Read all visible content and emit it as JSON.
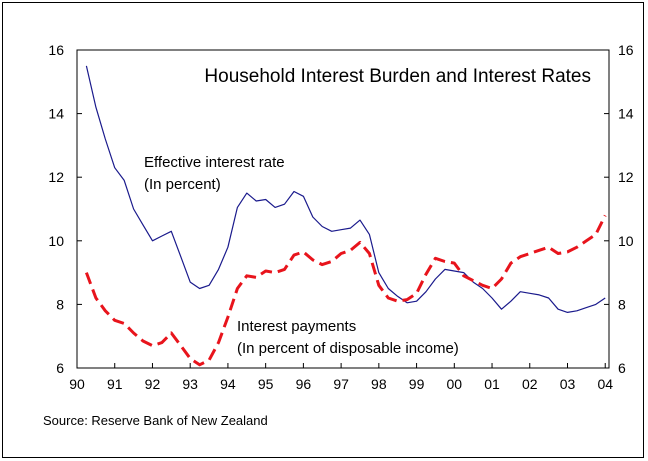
{
  "chart_data": {
    "type": "line",
    "title": "Household Interest Burden and Interest Rates",
    "source": "Source: Reserve Bank of New Zealand",
    "xlabel": "",
    "ylabel": "",
    "xlim": [
      1990,
      2004.1
    ],
    "ylim": [
      6,
      16
    ],
    "x_tick_values": [
      1990,
      1991,
      1992,
      1993,
      1994,
      1995,
      1996,
      1997,
      1998,
      1999,
      2000,
      2001,
      2002,
      2003,
      2004
    ],
    "x_tick_labels": [
      "90",
      "91",
      "92",
      "93",
      "94",
      "95",
      "96",
      "97",
      "98",
      "99",
      "00",
      "01",
      "02",
      "03",
      "04"
    ],
    "y_ticks": [
      6,
      8,
      10,
      12,
      14,
      16
    ],
    "y_tick_labels": [
      "6",
      "8",
      "10",
      "12",
      "14",
      "16"
    ],
    "y_ticks_right": [
      6,
      8,
      10,
      12,
      14,
      16
    ],
    "y_tick_labels_right": [
      "6",
      "8",
      "10",
      "12",
      "14",
      "16"
    ],
    "grid": false,
    "legend": "none",
    "annotations": [
      {
        "series": "Effective interest rate",
        "lines": [
          "Effective interest rate",
          "(In percent)"
        ]
      },
      {
        "series": "Interest payments",
        "lines": [
          "Interest payments",
          "(In percent of disposable income)"
        ]
      }
    ],
    "series": [
      {
        "name": "Effective interest rate",
        "color": "#1a1a8c",
        "style": "solid",
        "x": [
          1990.25,
          1990.5,
          1990.75,
          1991.0,
          1991.25,
          1991.5,
          1991.75,
          1992.0,
          1992.25,
          1992.5,
          1992.75,
          1993.0,
          1993.25,
          1993.5,
          1993.75,
          1994.0,
          1994.25,
          1994.5,
          1994.75,
          1995.0,
          1995.25,
          1995.5,
          1995.75,
          1996.0,
          1996.25,
          1996.5,
          1996.75,
          1997.0,
          1997.25,
          1997.5,
          1997.75,
          1998.0,
          1998.25,
          1998.5,
          1998.75,
          1999.0,
          1999.25,
          1999.5,
          1999.75,
          2000.0,
          2000.25,
          2000.5,
          2000.75,
          2001.0,
          2001.25,
          2001.5,
          2001.75,
          2002.0,
          2002.25,
          2002.5,
          2002.75,
          2003.0,
          2003.25,
          2003.5,
          2003.75,
          2004.0
        ],
        "values": [
          15.5,
          14.2,
          13.2,
          12.3,
          11.9,
          11.0,
          10.5,
          10.0,
          10.15,
          10.3,
          9.5,
          8.7,
          8.5,
          8.6,
          9.1,
          9.8,
          11.05,
          11.5,
          11.25,
          11.3,
          11.05,
          11.15,
          11.55,
          11.4,
          10.75,
          10.45,
          10.3,
          10.35,
          10.4,
          10.65,
          10.2,
          9.0,
          8.5,
          8.25,
          8.05,
          8.1,
          8.4,
          8.8,
          9.1,
          9.05,
          9.0,
          8.7,
          8.5,
          8.2,
          7.85,
          8.1,
          8.4,
          8.35,
          8.3,
          8.2,
          7.85,
          7.75,
          7.8,
          7.9,
          8.0,
          8.2
        ]
      },
      {
        "name": "Interest payments",
        "color": "#e8141c",
        "style": "dashed",
        "x": [
          1990.25,
          1990.5,
          1990.75,
          1991.0,
          1991.25,
          1991.5,
          1991.75,
          1992.0,
          1992.25,
          1992.5,
          1992.75,
          1993.0,
          1993.25,
          1993.5,
          1993.75,
          1994.0,
          1994.25,
          1994.5,
          1994.75,
          1995.0,
          1995.25,
          1995.5,
          1995.75,
          1996.0,
          1996.25,
          1996.5,
          1996.75,
          1997.0,
          1997.25,
          1997.5,
          1997.75,
          1998.0,
          1998.25,
          1998.5,
          1998.75,
          1999.0,
          1999.25,
          1999.5,
          1999.75,
          2000.0,
          2000.25,
          2000.5,
          2000.75,
          2001.0,
          2001.25,
          2001.5,
          2001.75,
          2002.0,
          2002.25,
          2002.5,
          2002.75,
          2003.0,
          2003.25,
          2003.5,
          2003.75,
          2004.0
        ],
        "values": [
          9.0,
          8.2,
          7.8,
          7.5,
          7.4,
          7.1,
          6.85,
          6.7,
          6.8,
          7.1,
          6.7,
          6.3,
          6.1,
          6.25,
          6.8,
          7.6,
          8.5,
          8.9,
          8.85,
          9.05,
          9.0,
          9.1,
          9.55,
          9.65,
          9.4,
          9.25,
          9.35,
          9.6,
          9.7,
          9.95,
          9.6,
          8.6,
          8.2,
          8.1,
          8.15,
          8.35,
          8.95,
          9.45,
          9.35,
          9.3,
          8.9,
          8.75,
          8.6,
          8.5,
          8.8,
          9.3,
          9.5,
          9.6,
          9.7,
          9.8,
          9.6,
          9.65,
          9.8,
          10.0,
          10.2,
          10.8
        ]
      }
    ]
  }
}
